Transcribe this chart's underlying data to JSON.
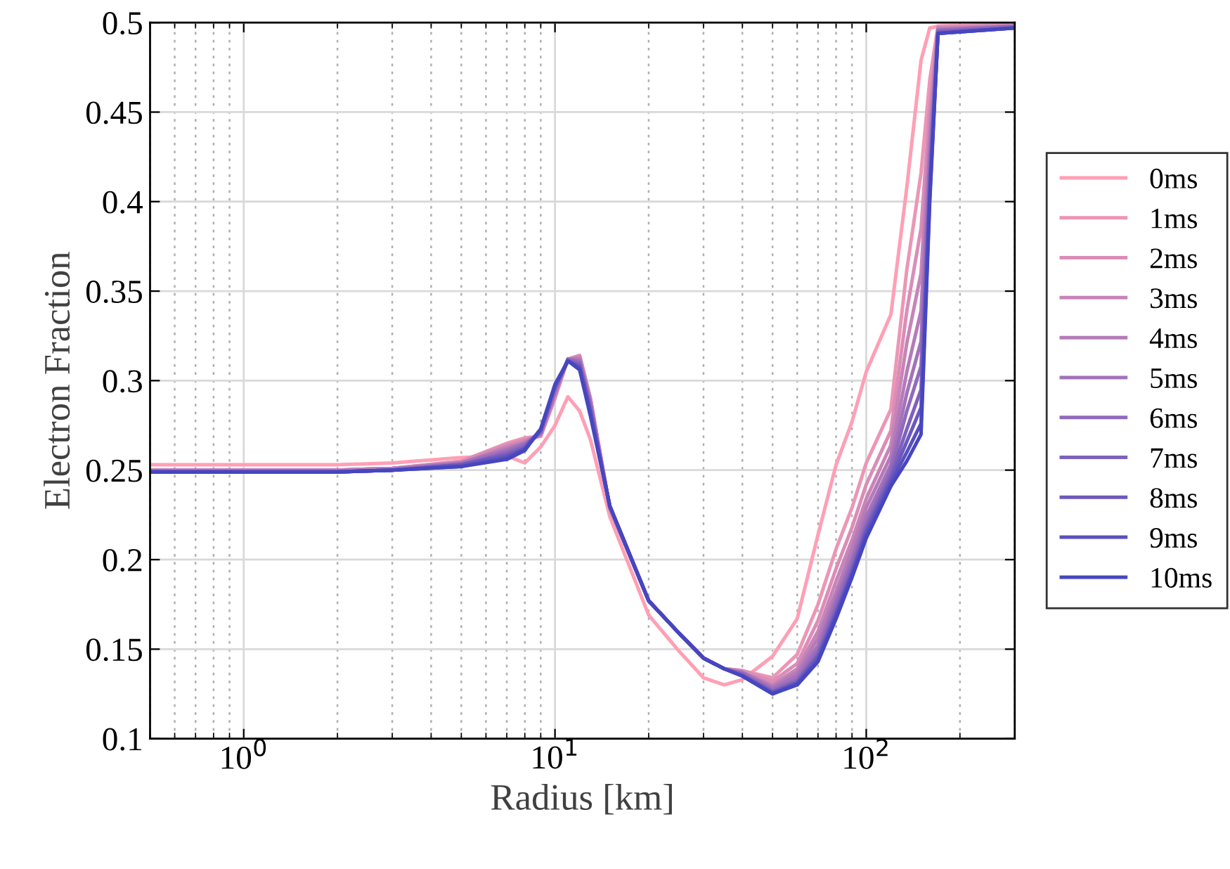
{
  "chart_data": {
    "type": "line",
    "xlabel": "Radius [km]",
    "ylabel": "Electron Fraction",
    "log": "x",
    "xlim": [
      0.5,
      300
    ],
    "ylim": [
      0.1,
      0.5
    ],
    "xticks": [
      {
        "value": 1,
        "label": "10$^{0}$"
      },
      {
        "value": 10,
        "label": "10$^{1}$"
      },
      {
        "value": 100,
        "label": "10$^{2}$"
      }
    ],
    "yticks": [
      0.1,
      0.15,
      0.2,
      0.25,
      0.3,
      0.35,
      0.4,
      0.45,
      0.5
    ],
    "grid": true,
    "legend": "right",
    "line_style": "solid",
    "x": [
      0.5,
      1,
      2,
      3,
      5,
      7,
      8,
      9,
      10,
      11,
      12,
      13,
      15,
      20,
      25,
      30,
      35,
      40,
      50,
      60,
      70,
      80,
      90,
      100,
      120,
      135,
      150,
      160,
      170,
      300
    ],
    "series": [
      {
        "name": "0ms",
        "color": "#ff9fb5",
        "values": [
          0.253,
          0.253,
          0.253,
          0.254,
          0.257,
          0.258,
          0.254,
          0.263,
          0.275,
          0.291,
          0.283,
          0.267,
          0.224,
          0.169,
          0.149,
          0.134,
          0.13,
          0.133,
          0.146,
          0.167,
          0.214,
          0.253,
          0.277,
          0.305,
          0.337,
          0.408,
          0.479,
          0.497,
          0.498,
          0.499
        ]
      },
      {
        "name": "1ms",
        "color": "#ec96b6",
        "values": [
          0.25,
          0.25,
          0.25,
          0.251,
          0.255,
          0.265,
          0.268,
          0.269,
          0.29,
          0.312,
          0.314,
          0.29,
          0.229,
          0.177,
          0.159,
          0.145,
          0.139,
          0.138,
          0.134,
          0.147,
          0.175,
          0.206,
          0.229,
          0.254,
          0.284,
          0.362,
          0.416,
          0.468,
          0.498,
          0.499
        ]
      },
      {
        "name": "2ms",
        "color": "#da8db7",
        "values": [
          0.25,
          0.25,
          0.25,
          0.251,
          0.255,
          0.264,
          0.267,
          0.269,
          0.291,
          0.312,
          0.314,
          0.29,
          0.229,
          0.177,
          0.159,
          0.145,
          0.139,
          0.138,
          0.132,
          0.142,
          0.166,
          0.195,
          0.218,
          0.242,
          0.272,
          0.339,
          0.385,
          0.453,
          0.497,
          0.499
        ]
      },
      {
        "name": "3ms",
        "color": "#c884b8",
        "values": [
          0.25,
          0.25,
          0.25,
          0.251,
          0.254,
          0.263,
          0.266,
          0.27,
          0.292,
          0.312,
          0.313,
          0.289,
          0.229,
          0.177,
          0.159,
          0.145,
          0.139,
          0.137,
          0.13,
          0.139,
          0.16,
          0.188,
          0.211,
          0.234,
          0.264,
          0.321,
          0.36,
          0.442,
          0.497,
          0.498
        ]
      },
      {
        "name": "4ms",
        "color": "#b57bb9",
        "values": [
          0.25,
          0.25,
          0.25,
          0.251,
          0.254,
          0.262,
          0.265,
          0.27,
          0.293,
          0.312,
          0.312,
          0.288,
          0.229,
          0.177,
          0.159,
          0.145,
          0.139,
          0.137,
          0.129,
          0.137,
          0.156,
          0.182,
          0.206,
          0.229,
          0.258,
          0.305,
          0.339,
          0.432,
          0.496,
          0.498
        ]
      },
      {
        "name": "5ms",
        "color": "#a372ba",
        "values": [
          0.249,
          0.249,
          0.249,
          0.25,
          0.254,
          0.261,
          0.265,
          0.271,
          0.294,
          0.312,
          0.311,
          0.287,
          0.229,
          0.177,
          0.159,
          0.145,
          0.139,
          0.137,
          0.128,
          0.135,
          0.152,
          0.178,
          0.201,
          0.224,
          0.253,
          0.293,
          0.322,
          0.424,
          0.496,
          0.498
        ]
      },
      {
        "name": "6ms",
        "color": "#916abb",
        "values": [
          0.249,
          0.249,
          0.249,
          0.25,
          0.253,
          0.26,
          0.264,
          0.271,
          0.295,
          0.312,
          0.31,
          0.286,
          0.229,
          0.177,
          0.159,
          0.145,
          0.139,
          0.136,
          0.127,
          0.133,
          0.149,
          0.175,
          0.198,
          0.22,
          0.25,
          0.283,
          0.308,
          0.417,
          0.495,
          0.498
        ]
      },
      {
        "name": "7ms",
        "color": "#7e61bd",
        "values": [
          0.249,
          0.249,
          0.249,
          0.25,
          0.253,
          0.259,
          0.263,
          0.272,
          0.296,
          0.311,
          0.309,
          0.284,
          0.23,
          0.177,
          0.159,
          0.145,
          0.139,
          0.136,
          0.126,
          0.132,
          0.147,
          0.172,
          0.195,
          0.218,
          0.247,
          0.273,
          0.295,
          0.412,
          0.495,
          0.497
        ]
      },
      {
        "name": "8ms",
        "color": "#6c58be",
        "values": [
          0.249,
          0.249,
          0.249,
          0.25,
          0.253,
          0.258,
          0.262,
          0.272,
          0.297,
          0.311,
          0.308,
          0.283,
          0.23,
          0.177,
          0.159,
          0.145,
          0.139,
          0.135,
          0.126,
          0.131,
          0.146,
          0.17,
          0.193,
          0.216,
          0.245,
          0.266,
          0.285,
          0.407,
          0.494,
          0.497
        ]
      },
      {
        "name": "9ms",
        "color": "#594fbf",
        "values": [
          0.249,
          0.249,
          0.249,
          0.25,
          0.252,
          0.257,
          0.262,
          0.273,
          0.297,
          0.311,
          0.307,
          0.282,
          0.23,
          0.177,
          0.159,
          0.145,
          0.139,
          0.135,
          0.125,
          0.131,
          0.144,
          0.169,
          0.192,
          0.214,
          0.243,
          0.26,
          0.276,
          0.403,
          0.494,
          0.497
        ]
      },
      {
        "name": "10ms",
        "color": "#4646c0",
        "values": [
          0.249,
          0.249,
          0.249,
          0.25,
          0.252,
          0.256,
          0.261,
          0.273,
          0.298,
          0.311,
          0.306,
          0.28,
          0.23,
          0.177,
          0.159,
          0.145,
          0.139,
          0.135,
          0.125,
          0.13,
          0.143,
          0.167,
          0.19,
          0.212,
          0.241,
          0.255,
          0.27,
          0.4,
          0.494,
          0.497
        ]
      }
    ]
  }
}
